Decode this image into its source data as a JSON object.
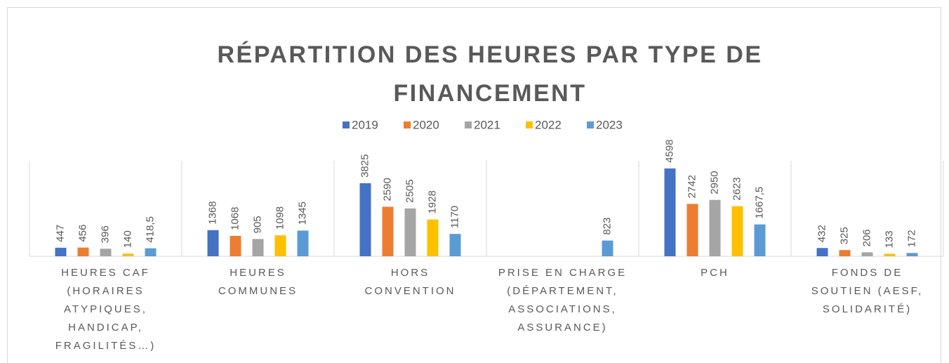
{
  "chart_data": {
    "type": "bar",
    "title": "RÉPARTITION DES HEURES PAR TYPE DE FINANCEMENT",
    "categories": [
      "HEURES CAF (HORAIRES ATYPIQUES, HANDICAP, FRAGILITÉS…)",
      "HEURES COMMUNES",
      "HORS CONVENTION",
      "PRISE EN CHARGE (DÉPARTEMENT, ASSOCIATIONS, ASSURANCE)",
      "PCH",
      "FONDS DE SOUTIEN (AESF, SOLIDARITÉ)"
    ],
    "series": [
      {
        "name": "2019",
        "color": "#4472c4",
        "values": [
          447,
          1368,
          3825,
          null,
          4598,
          432
        ]
      },
      {
        "name": "2020",
        "color": "#ed7d31",
        "values": [
          456,
          1068,
          2590,
          null,
          2742,
          325
        ]
      },
      {
        "name": "2021",
        "color": "#a5a5a5",
        "values": [
          396,
          905,
          2505,
          null,
          2950,
          206
        ]
      },
      {
        "name": "2022",
        "color": "#ffc000",
        "values": [
          140,
          1098,
          1928,
          null,
          2623,
          133
        ]
      },
      {
        "name": "2023",
        "color": "#5b9bd5",
        "values": [
          418.5,
          1345,
          1170,
          823,
          1667.5,
          172
        ],
        "value_labels": [
          "418,5",
          "1345",
          "1170",
          "823",
          "1667,5",
          "172"
        ]
      }
    ],
    "legend": "top"
  }
}
